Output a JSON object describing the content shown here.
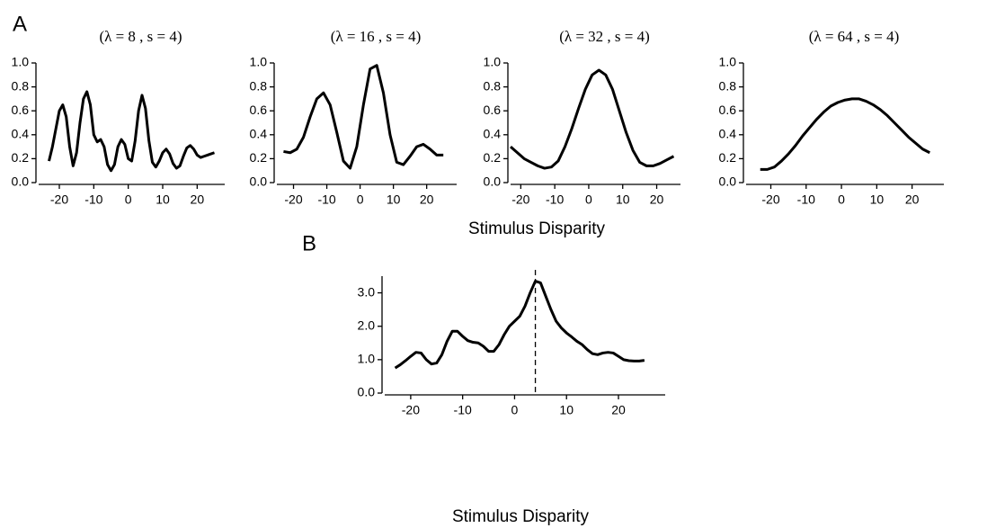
{
  "figure": {
    "panel_a_label": "A",
    "panel_a_xlabel": "Stimulus Disparity",
    "panel_b_label": "B"
  },
  "chart_data": [
    {
      "type": "line",
      "title": "(λ = 8 , s = 4)",
      "xlim": [
        -26,
        28
      ],
      "ylim": [
        0,
        1
      ],
      "xticks": [
        -20,
        -10,
        0,
        10,
        20
      ],
      "yticks": [
        {
          "value": 0,
          "label": "0.0"
        },
        0.2,
        0.4,
        0.6,
        0.8,
        {
          "value": 1,
          "label": "1.0"
        }
      ],
      "grid": false,
      "color": "#000000",
      "x": [
        -23,
        -22,
        -21,
        -20,
        -19,
        -18,
        -17,
        -16,
        -15,
        -14,
        -13,
        -12,
        -11,
        -10,
        -9,
        -8,
        -7,
        -6,
        -5,
        -4,
        -3,
        -2,
        -1,
        0,
        1,
        2,
        3,
        4,
        5,
        6,
        7,
        8,
        9,
        10,
        11,
        12,
        13,
        14,
        15,
        16,
        17,
        18,
        19,
        20,
        21,
        22,
        23,
        24,
        25
      ],
      "values": [
        0.18,
        0.3,
        0.45,
        0.6,
        0.65,
        0.55,
        0.3,
        0.14,
        0.25,
        0.5,
        0.7,
        0.76,
        0.65,
        0.4,
        0.34,
        0.36,
        0.3,
        0.15,
        0.1,
        0.15,
        0.3,
        0.36,
        0.32,
        0.2,
        0.18,
        0.35,
        0.6,
        0.73,
        0.62,
        0.35,
        0.17,
        0.13,
        0.18,
        0.25,
        0.28,
        0.24,
        0.16,
        0.12,
        0.14,
        0.22,
        0.29,
        0.31,
        0.28,
        0.23,
        0.21,
        0.22,
        0.23,
        0.24,
        0.25
      ]
    },
    {
      "type": "line",
      "title": "(λ = 16 , s = 4)",
      "xlim": [
        -25,
        29
      ],
      "ylim": [
        0,
        1
      ],
      "xticks": [
        -20,
        -10,
        0,
        10,
        20
      ],
      "yticks": [
        {
          "value": 0,
          "label": "0.0"
        },
        0.2,
        0.4,
        0.6,
        0.8,
        {
          "value": 1,
          "label": "1.0"
        }
      ],
      "grid": false,
      "color": "#000000",
      "x": [
        -23,
        -21,
        -19,
        -17,
        -15,
        -13,
        -11,
        -9,
        -7,
        -5,
        -3,
        -1,
        1,
        3,
        5,
        7,
        9,
        11,
        13,
        15,
        17,
        19,
        21,
        23,
        25
      ],
      "values": [
        0.26,
        0.25,
        0.28,
        0.38,
        0.55,
        0.7,
        0.75,
        0.65,
        0.42,
        0.18,
        0.12,
        0.3,
        0.65,
        0.95,
        0.98,
        0.75,
        0.4,
        0.17,
        0.15,
        0.22,
        0.3,
        0.32,
        0.28,
        0.23,
        0.23
      ]
    },
    {
      "type": "line",
      "title": "(λ = 32 , s = 4)",
      "xlim": [
        -23,
        27
      ],
      "ylim": [
        0,
        1
      ],
      "xticks": [
        -20,
        -10,
        0,
        10,
        20
      ],
      "yticks": [
        {
          "value": 0,
          "label": "0.0"
        },
        0.2,
        0.4,
        0.6,
        0.8,
        {
          "value": 1,
          "label": "1.0"
        }
      ],
      "grid": false,
      "color": "#000000",
      "x": [
        -23,
        -21,
        -19,
        -17,
        -15,
        -13,
        -11,
        -9,
        -7,
        -5,
        -3,
        -1,
        1,
        3,
        5,
        7,
        9,
        11,
        13,
        15,
        17,
        19,
        21,
        23,
        25
      ],
      "values": [
        0.3,
        0.25,
        0.2,
        0.17,
        0.14,
        0.12,
        0.13,
        0.18,
        0.3,
        0.45,
        0.62,
        0.78,
        0.9,
        0.94,
        0.9,
        0.78,
        0.6,
        0.42,
        0.27,
        0.17,
        0.14,
        0.14,
        0.16,
        0.19,
        0.22
      ]
    },
    {
      "type": "line",
      "title": "(λ = 64 , s = 4)",
      "xlim": [
        -27,
        29
      ],
      "ylim": [
        0,
        1
      ],
      "xticks": [
        -20,
        -10,
        0,
        10,
        20
      ],
      "yticks": [
        {
          "value": 0,
          "label": "0.0"
        },
        0.2,
        0.4,
        0.6,
        0.8,
        {
          "value": 1,
          "label": "1.0"
        }
      ],
      "grid": false,
      "color": "#000000",
      "x": [
        -23,
        -21,
        -19,
        -17,
        -15,
        -13,
        -11,
        -9,
        -7,
        -5,
        -3,
        -1,
        1,
        3,
        5,
        7,
        9,
        11,
        13,
        15,
        17,
        19,
        21,
        23,
        25
      ],
      "values": [
        0.11,
        0.11,
        0.13,
        0.18,
        0.24,
        0.31,
        0.39,
        0.46,
        0.53,
        0.59,
        0.64,
        0.67,
        0.69,
        0.7,
        0.7,
        0.68,
        0.65,
        0.61,
        0.56,
        0.5,
        0.44,
        0.38,
        0.33,
        0.28,
        0.25
      ]
    },
    {
      "type": "line",
      "xlabel": "Stimulus Disparity",
      "xlim": [
        -25,
        29
      ],
      "ylim": [
        0,
        3.5
      ],
      "xticks": [
        -20,
        -10,
        0,
        10,
        20
      ],
      "yticks": [
        {
          "value": 0,
          "label": "0.0"
        },
        {
          "value": 1,
          "label": "1.0"
        },
        {
          "value": 2,
          "label": "2.0"
        },
        {
          "value": 3,
          "label": "3.0"
        }
      ],
      "grid": false,
      "color": "#000000",
      "vline": 4,
      "x": [
        -23,
        -22,
        -21,
        -20,
        -19,
        -18,
        -17,
        -16,
        -15,
        -14,
        -13,
        -12,
        -11,
        -10,
        -9,
        -8,
        -7,
        -6,
        -5,
        -4,
        -3,
        -2,
        -1,
        0,
        1,
        2,
        3,
        4,
        5,
        6,
        7,
        8,
        9,
        10,
        11,
        12,
        13,
        14,
        15,
        16,
        17,
        18,
        19,
        20,
        21,
        22,
        23,
        24,
        25
      ],
      "values": [
        0.75,
        0.85,
        0.97,
        1.1,
        1.22,
        1.2,
        1.0,
        0.87,
        0.9,
        1.15,
        1.55,
        1.85,
        1.85,
        1.7,
        1.57,
        1.52,
        1.5,
        1.4,
        1.25,
        1.25,
        1.45,
        1.75,
        2.0,
        2.15,
        2.3,
        2.6,
        3.0,
        3.35,
        3.3,
        2.9,
        2.5,
        2.15,
        1.95,
        1.8,
        1.68,
        1.55,
        1.45,
        1.3,
        1.18,
        1.15,
        1.2,
        1.22,
        1.2,
        1.1,
        1.0,
        0.97,
        0.96,
        0.96,
        0.98
      ]
    }
  ]
}
